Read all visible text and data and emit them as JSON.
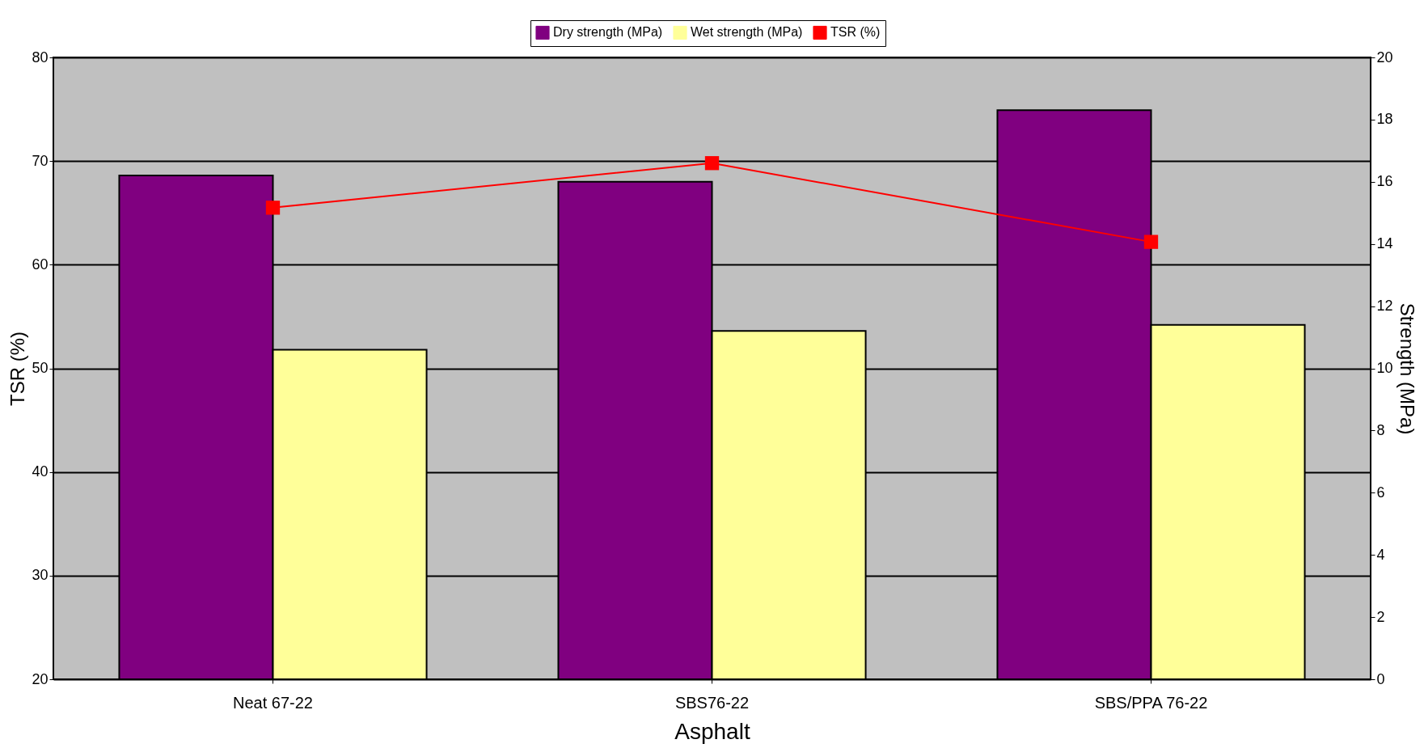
{
  "chart_data": {
    "type": "bar",
    "xlabel": "Asphalt",
    "ylabel": "TSR (%)",
    "y2label": "Strength (MPa)",
    "categories": [
      "Neat 67-22",
      "SBS76-22",
      "SBS/PPA 76-22"
    ],
    "series": [
      {
        "name": "Dry strength (MPa)",
        "color": "#800080",
        "values": [
          16.2,
          16.0,
          18.3
        ],
        "axis": "y2"
      },
      {
        "name": "Wet strength (MPa)",
        "color": "#ffff99",
        "values": [
          10.6,
          11.2,
          11.4
        ],
        "axis": "y2"
      },
      {
        "name": "TSR (%)",
        "type": "line",
        "color": "#ff0000",
        "values": [
          65.5,
          69.8,
          62.2
        ],
        "marker": "square",
        "line_style": "solid"
      }
    ],
    "ylim": [
      20,
      80
    ],
    "yticks": [
      20,
      30,
      40,
      50,
      60,
      70,
      80
    ],
    "y2lim": [
      0,
      20
    ],
    "y2ticks": [
      0,
      2,
      4,
      6,
      8,
      10,
      12,
      14,
      16,
      18,
      20
    ],
    "grid": "y",
    "legend": "top"
  }
}
